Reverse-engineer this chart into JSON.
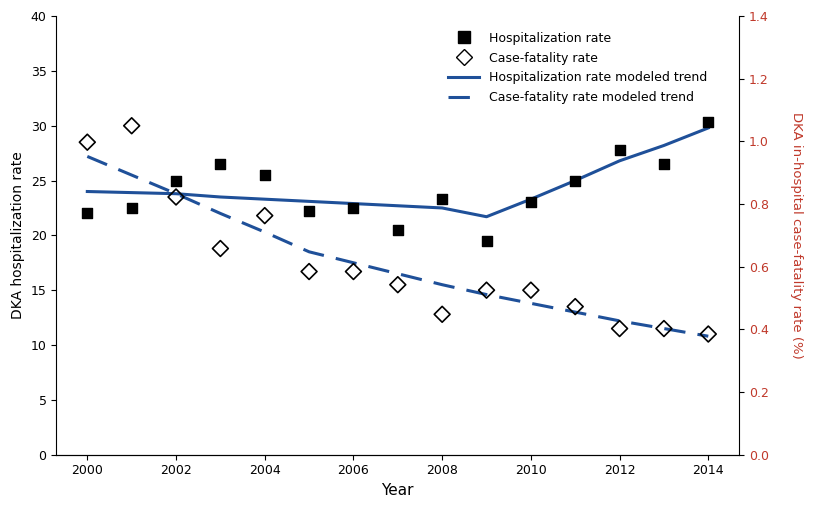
{
  "years_hosp": [
    2000,
    2001,
    2002,
    2003,
    2004,
    2005,
    2006,
    2007,
    2008,
    2009,
    2010,
    2011,
    2012,
    2013,
    2014
  ],
  "hosp_rate": [
    22.0,
    22.5,
    25.0,
    26.5,
    25.5,
    22.2,
    22.5,
    20.5,
    23.3,
    19.5,
    23.0,
    25.0,
    27.8,
    26.5,
    30.3
  ],
  "years_cfr": [
    2000,
    2001,
    2002,
    2003,
    2004,
    2005,
    2006,
    2007,
    2008,
    2009,
    2010,
    2011,
    2012,
    2013,
    2014
  ],
  "cfr_rate_left": [
    28.5,
    30.0,
    23.5,
    18.8,
    21.8,
    16.7,
    16.7,
    15.5,
    12.8,
    15.0,
    15.0,
    13.5,
    11.5,
    11.5,
    11.0
  ],
  "hosp_trend_years": [
    2000,
    2002,
    2003,
    2004,
    2005,
    2006,
    2007,
    2008,
    2009,
    2010,
    2011,
    2012,
    2013,
    2014
  ],
  "hosp_trend_vals": [
    24.0,
    23.8,
    23.5,
    23.3,
    23.1,
    22.9,
    22.7,
    22.5,
    21.7,
    23.3,
    25.0,
    26.8,
    28.2,
    29.8
  ],
  "cfr_trend_years": [
    2000,
    2001,
    2002,
    2003,
    2004,
    2005,
    2006,
    2007,
    2008,
    2009,
    2010,
    2011,
    2012,
    2013,
    2014
  ],
  "cfr_trend_vals_left": [
    27.2,
    25.5,
    23.8,
    22.0,
    20.3,
    18.5,
    17.5,
    16.5,
    15.5,
    14.6,
    13.8,
    13.0,
    12.2,
    11.5,
    10.8
  ],
  "ylabel_left": "DKA hospitalization rate",
  "ylabel_right": "DKA in-hospital case-fatality rate (%)",
  "xlabel": "Year",
  "ylim_left": [
    0,
    40
  ],
  "ylim_right": [
    0,
    1.4
  ],
  "yticks_left": [
    0,
    5,
    10,
    15,
    20,
    25,
    30,
    35,
    40
  ],
  "yticks_right": [
    0,
    0.2,
    0.4,
    0.6,
    0.8,
    1.0,
    1.2,
    1.4
  ],
  "xticks": [
    2000,
    2002,
    2004,
    2006,
    2008,
    2010,
    2012,
    2014
  ],
  "xlim": [
    1999.3,
    2014.7
  ],
  "line_color": "#1f5099",
  "right_axis_color": "#c0392b",
  "legend_labels": [
    "Hospitalization rate",
    "Case-fatality rate",
    "Hospitalization rate modeled trend",
    "Case-fatality rate modeled trend"
  ],
  "background_color": "#ffffff"
}
